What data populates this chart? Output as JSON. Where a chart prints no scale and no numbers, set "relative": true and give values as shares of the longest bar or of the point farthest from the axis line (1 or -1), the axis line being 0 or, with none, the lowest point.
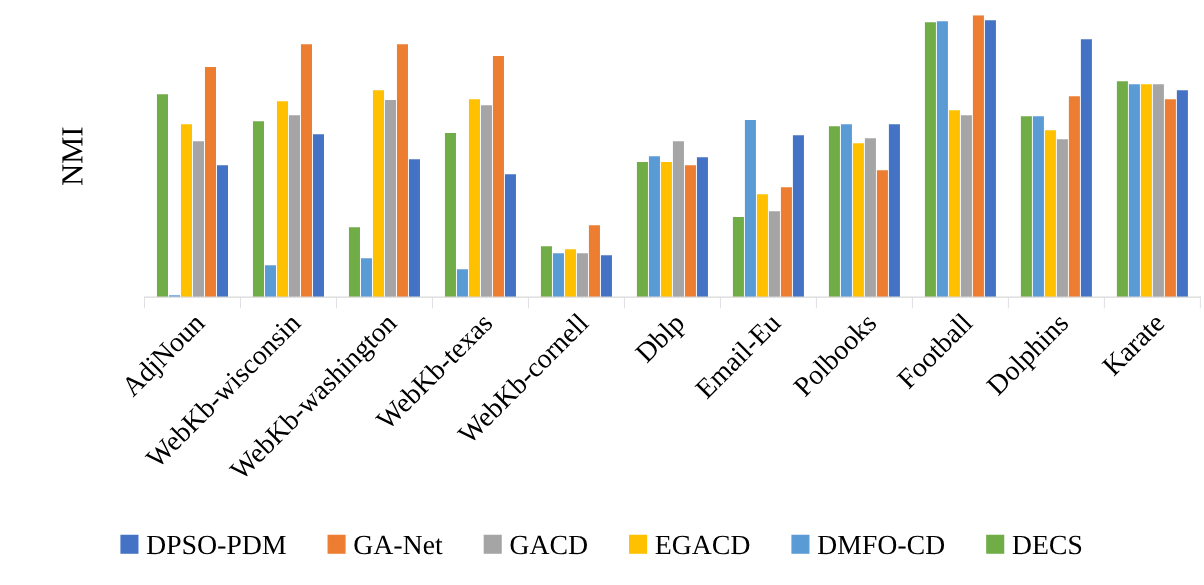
{
  "chart_data": {
    "type": "bar",
    "relative": true,
    "ylabel": "NMI",
    "categories": [
      "AdjNoun",
      "WebKb-wisconsin",
      "WebKb-washington",
      "WebKb-texas",
      "WebKb-cornell",
      "Dblp",
      "Email-Eu",
      "Polbooks",
      "Football",
      "Dolphins",
      "Karate"
    ],
    "series": [
      {
        "name": "DECS",
        "color": "#70ad47",
        "values": [
          0.72,
          0.624,
          0.248,
          0.582,
          0.181,
          0.479,
          0.284,
          0.606,
          0.975,
          0.642,
          0.766
        ]
      },
      {
        "name": "DMFO-CD",
        "color": "#5b9bd5",
        "values": [
          0.007,
          0.113,
          0.138,
          0.099,
          0.156,
          0.5,
          0.628,
          0.613,
          0.979,
          0.642,
          0.755
        ]
      },
      {
        "name": "EGACD",
        "color": "#ffc000",
        "values": [
          0.613,
          0.695,
          0.734,
          0.702,
          0.17,
          0.479,
          0.365,
          0.546,
          0.663,
          0.592,
          0.755
        ]
      },
      {
        "name": "GACD",
        "color": "#a5a5a5",
        "values": [
          0.553,
          0.645,
          0.699,
          0.681,
          0.156,
          0.553,
          0.305,
          0.564,
          0.645,
          0.56,
          0.755
        ]
      },
      {
        "name": "GA-Net",
        "color": "#ed7d31",
        "values": [
          0.816,
          0.897,
          0.897,
          0.855,
          0.255,
          0.468,
          0.39,
          0.45,
          1.0,
          0.713,
          0.702
        ]
      },
      {
        "name": "DPSO-PDM",
        "color": "#4472c4",
        "values": [
          0.468,
          0.578,
          0.489,
          0.436,
          0.149,
          0.496,
          0.574,
          0.613,
          0.982,
          0.915,
          0.734
        ]
      }
    ],
    "legend": "bottom",
    "grid": false
  }
}
